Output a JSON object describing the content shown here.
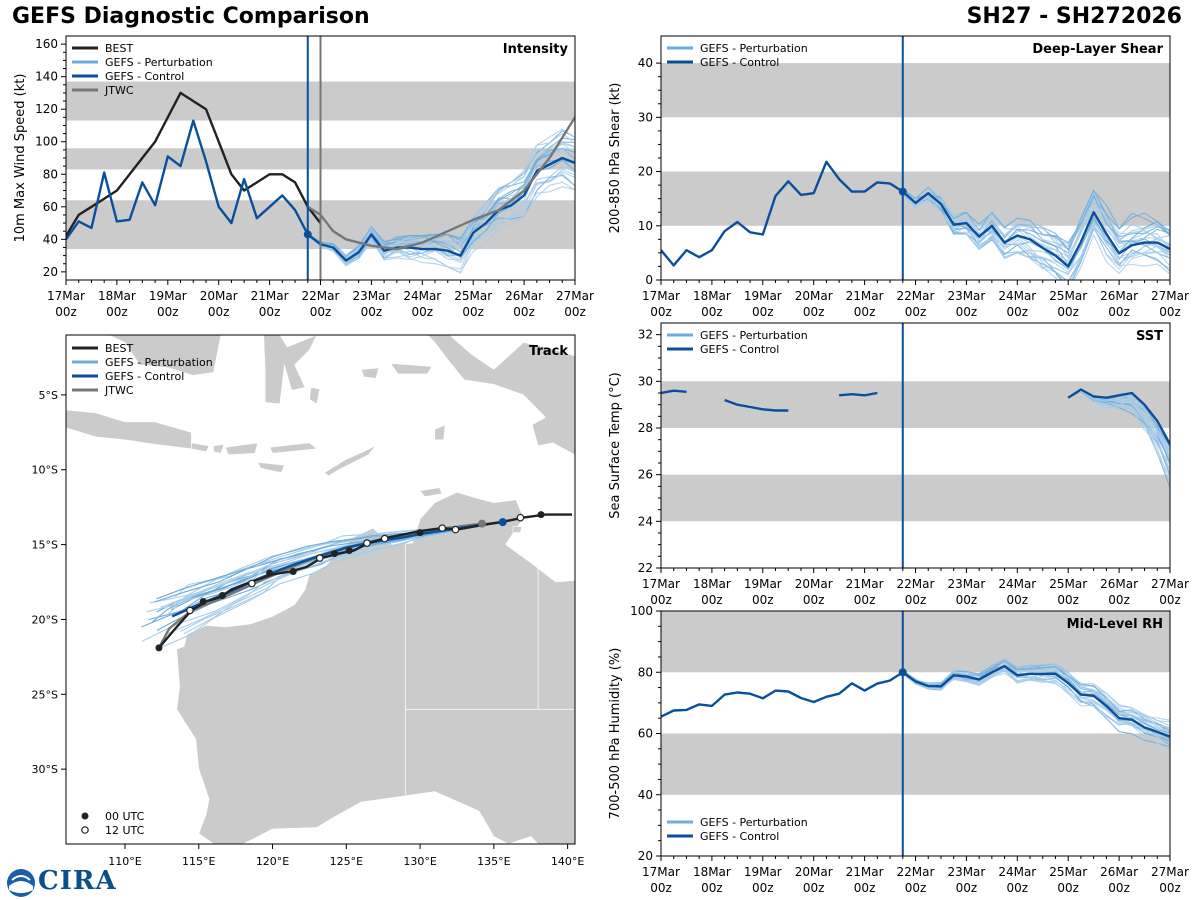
{
  "header": {
    "title": "GEFS Diagnostic Comparison",
    "storm": "SH27 - SH272026"
  },
  "logo": {
    "text": "CIRA"
  },
  "colors": {
    "best": "#222222",
    "perturbation": "#6fabd8",
    "perturbation_light": "#a8cde9",
    "control": "#0a4f9c",
    "jtwc": "#777777",
    "band": "#cbcbcb",
    "land": "#cbcbcb"
  },
  "x_ticks": [
    "17Mar\n00z",
    "18Mar\n00z",
    "19Mar\n00z",
    "20Mar\n00z",
    "21Mar\n00z",
    "22Mar\n00z",
    "23Mar\n00z",
    "24Mar\n00z",
    "25Mar\n00z",
    "26Mar\n00z",
    "27Mar\n00z"
  ],
  "chart_data": [
    {
      "id": "intensity",
      "type": "line",
      "title": "Intensity",
      "ylabel": "10m Max Wind Speed (kt)",
      "ylim": [
        15,
        165
      ],
      "yticks": [
        20,
        40,
        60,
        80,
        100,
        120,
        140,
        160
      ],
      "bands": [
        [
          34,
          64
        ],
        [
          83,
          96
        ],
        [
          113,
          137
        ]
      ],
      "init_day": 4.75,
      "jtwc_day": 5.0,
      "legend": [
        "BEST",
        "GEFS - Perturbation",
        "GEFS - Control",
        "JTWC"
      ],
      "series": [
        {
          "name": "BEST",
          "x": [
            0,
            0.25,
            0.5,
            0.75,
            1,
            1.25,
            1.5,
            1.75,
            2,
            2.25,
            2.5,
            2.75,
            3,
            3.25,
            3.5,
            3.75,
            4,
            4.25,
            4.5,
            4.75,
            5
          ],
          "values": [
            42,
            55,
            60,
            65,
            70,
            80,
            90,
            100,
            115,
            130,
            125,
            120,
            100,
            80,
            70,
            75,
            80,
            80,
            75,
            60,
            50
          ]
        },
        {
          "name": "GEFS - Control",
          "x": [
            0,
            0.25,
            0.5,
            0.75,
            1,
            1.25,
            1.5,
            1.75,
            2,
            2.25,
            2.5,
            2.75,
            3,
            3.25,
            3.5,
            3.75,
            4,
            4.25,
            4.5,
            4.75,
            5,
            5.25,
            5.5,
            5.75,
            6,
            6.25,
            6.5,
            6.75,
            7,
            7.25,
            7.5,
            7.75,
            8,
            8.25,
            8.5,
            8.75,
            9,
            9.25,
            9.5,
            9.75,
            10
          ],
          "values": [
            40,
            51,
            47,
            81,
            51,
            52,
            75,
            61,
            91,
            85,
            113,
            88,
            60,
            50,
            77,
            53,
            60,
            67,
            58,
            43,
            37,
            35,
            27,
            32,
            43,
            33,
            35,
            35,
            34,
            34,
            33,
            30,
            44,
            50,
            58,
            61,
            67,
            82,
            86,
            90,
            87
          ]
        },
        {
          "name": "JTWC",
          "x": [
            4.75,
            5,
            5.25,
            5.5,
            6,
            6.5,
            7,
            7.5,
            8,
            8.5,
            9,
            9.5,
            10
          ],
          "values": [
            60,
            55,
            45,
            40,
            36,
            34,
            38,
            45,
            52,
            58,
            70,
            90,
            115
          ]
        }
      ]
    },
    {
      "id": "shear",
      "type": "line",
      "title": "Deep-Layer Shear",
      "ylabel": "200-850 hPa Shear (kt)",
      "ylim": [
        0,
        45
      ],
      "yticks": [
        0,
        10,
        20,
        30,
        40
      ],
      "bands": [
        [
          10,
          20
        ],
        [
          30,
          40
        ]
      ],
      "init_day": 4.75,
      "legend": [
        "GEFS - Perturbation",
        "GEFS - Control"
      ],
      "series": [
        {
          "name": "GEFS - Control",
          "x": [
            0,
            0.25,
            0.5,
            0.75,
            1,
            1.25,
            1.5,
            1.75,
            2,
            2.25,
            2.5,
            2.75,
            3,
            3.25,
            3.5,
            3.75,
            4,
            4.25,
            4.5,
            4.75,
            5,
            5.25,
            5.5,
            5.75,
            6,
            6.25,
            6.5,
            6.75,
            7,
            7.25,
            7.5,
            7.75,
            8,
            8.25,
            8.5,
            8.75,
            9,
            9.25,
            9.5,
            9.75,
            10
          ],
          "values": [
            5.5,
            2.7,
            5.5,
            4.2,
            5.5,
            9,
            10.7,
            8.8,
            8.4,
            15.5,
            18.2,
            15.7,
            16,
            21.8,
            18.6,
            16.3,
            16.3,
            18,
            17.8,
            16.3,
            14.2,
            16,
            14,
            10.2,
            10.5,
            8,
            10,
            6.9,
            8.2,
            7.5,
            5.9,
            4.5,
            2.5,
            7,
            12.5,
            8.5,
            4.9,
            6.4,
            6.9,
            6.9,
            5.7
          ]
        }
      ]
    },
    {
      "id": "sst",
      "type": "line",
      "title": "SST",
      "ylabel": "Sea Surface Temp (°C)",
      "ylim": [
        22,
        32.5
      ],
      "yticks": [
        22,
        24,
        26,
        28,
        30,
        32
      ],
      "bands": [
        [
          24,
          26
        ],
        [
          28,
          30
        ]
      ],
      "init_day": 4.75,
      "legend": [
        "GEFS - Perturbation",
        "GEFS - Control"
      ],
      "series": [
        {
          "name": "GEFS - Control seg1",
          "x": [
            0,
            0.25,
            0.5
          ],
          "values": [
            29.5,
            29.6,
            29.55
          ]
        },
        {
          "name": "GEFS - Control seg2",
          "x": [
            1.25,
            1.5,
            1.75,
            2,
            2.25,
            2.5
          ],
          "values": [
            29.2,
            29,
            28.9,
            28.8,
            28.75,
            28.75
          ]
        },
        {
          "name": "GEFS - Control seg3",
          "x": [
            3.5,
            3.75,
            4,
            4.25
          ],
          "values": [
            29.4,
            29.45,
            29.4,
            29.5
          ]
        },
        {
          "name": "GEFS - Control seg4",
          "x": [
            8,
            8.25,
            8.5,
            8.75,
            9,
            9.25,
            9.5,
            9.75,
            10
          ],
          "values": [
            29.3,
            29.65,
            29.35,
            29.3,
            29.4,
            29.5,
            29,
            28.3,
            27.3
          ]
        }
      ]
    },
    {
      "id": "rh",
      "type": "line",
      "title": "Mid-Level RH",
      "ylabel": "700-500 hPa Humidity (%)",
      "ylim": [
        20,
        100
      ],
      "yticks": [
        20,
        40,
        60,
        80,
        100
      ],
      "bands": [
        [
          40,
          60
        ],
        [
          80,
          100
        ]
      ],
      "init_day": 4.75,
      "legend": [
        "GEFS - Perturbation",
        "GEFS - Control"
      ],
      "series": [
        {
          "name": "GEFS - Control",
          "x": [
            0,
            0.25,
            0.5,
            0.75,
            1,
            1.25,
            1.5,
            1.75,
            2,
            2.25,
            2.5,
            2.75,
            3,
            3.25,
            3.5,
            3.75,
            4,
            4.25,
            4.5,
            4.75,
            5,
            5.25,
            5.5,
            5.75,
            6,
            6.25,
            6.5,
            6.75,
            7,
            7.25,
            7.5,
            7.75,
            8,
            8.25,
            8.5,
            8.75,
            9,
            9.25,
            9.5,
            9.75,
            10
          ],
          "values": [
            65.5,
            67.5,
            67.7,
            69.5,
            69,
            72.7,
            73.4,
            73,
            71.5,
            74,
            73.7,
            71.6,
            70.3,
            72,
            73,
            76.4,
            74,
            76.3,
            77.3,
            80,
            77,
            75.5,
            75.4,
            79,
            78.6,
            77.6,
            80,
            82,
            79,
            79.5,
            79.5,
            79.5,
            76.5,
            72.7,
            72.3,
            69,
            65,
            64.5,
            62,
            60.5,
            59
          ]
        }
      ]
    },
    {
      "id": "track",
      "type": "scatter",
      "title": "Track",
      "xlim": [
        106,
        140.5
      ],
      "ylim": [
        -35,
        -1
      ],
      "xticks": [
        "110°E",
        "115°E",
        "120°E",
        "125°E",
        "130°E",
        "135°E",
        "140°E"
      ],
      "xtick_values": [
        110,
        115,
        120,
        125,
        130,
        135,
        140
      ],
      "yticks": [
        "5°S",
        "10°S",
        "15°S",
        "20°S",
        "25°S",
        "30°S"
      ],
      "ytick_values": [
        -5,
        -10,
        -15,
        -20,
        -25,
        -30
      ],
      "legend": [
        "BEST",
        "GEFS - Perturbation",
        "GEFS - Control",
        "JTWC"
      ],
      "marker_legend": [
        "00 UTC",
        "12 UTC"
      ],
      "best": {
        "lon": [
          140.3,
          139.5,
          138.5,
          137,
          135.5,
          134.2,
          132.5,
          131.5,
          130,
          129,
          128,
          127.5,
          126.5,
          125.5,
          124.5,
          123.3,
          122.3,
          121.2,
          120,
          118.5,
          117.2,
          116.5,
          115.5,
          114.5,
          113.5,
          112.3
        ],
        "lat": [
          -13,
          -13,
          -13,
          -13.2,
          -13.5,
          -13.7,
          -14,
          -13.9,
          -14.1,
          -14.3,
          -14.5,
          -14.6,
          -14.9,
          -15.4,
          -15.6,
          -15.9,
          -16.5,
          -16.8,
          -17,
          -17.5,
          -18,
          -18.5,
          -18.8,
          -19.4,
          -20.5,
          -21.9
        ],
        "marker00": [
          [
            138.2,
            -13.0
          ],
          [
            134.2,
            -13.6
          ],
          [
            130,
            -14.2
          ],
          [
            125.2,
            -15.4
          ],
          [
            124.2,
            -15.6
          ],
          [
            121.4,
            -16.8
          ],
          [
            119.8,
            -16.9
          ],
          [
            116.6,
            -18.4
          ],
          [
            115.3,
            -18.8
          ],
          [
            112.3,
            -21.9
          ]
        ],
        "marker12": [
          [
            136.8,
            -13.2
          ],
          [
            132.4,
            -14.0
          ],
          [
            131.5,
            -13.9
          ],
          [
            127.6,
            -14.6
          ],
          [
            126.4,
            -14.9
          ],
          [
            123.2,
            -15.9
          ],
          [
            118.6,
            -17.6
          ],
          [
            114.4,
            -19.4
          ]
        ]
      },
      "control": {
        "lon": [
          135.6,
          134,
          132,
          130,
          129,
          127,
          125,
          123,
          121,
          119,
          117,
          115,
          113.2
        ],
        "lat": [
          -13.5,
          -13.7,
          -14,
          -14.3,
          -14.5,
          -14.8,
          -15.2,
          -15.8,
          -16.5,
          -17.3,
          -18.2,
          -19,
          -19.8
        ]
      },
      "jtwc": {
        "lon": [
          134.2,
          131,
          128,
          125,
          122,
          119,
          116.5,
          114.5,
          113,
          112.3
        ],
        "lat": [
          -13.6,
          -14,
          -14.5,
          -15.2,
          -16.2,
          -17.5,
          -18.6,
          -19.4,
          -20.6,
          -21.9
        ]
      }
    }
  ]
}
